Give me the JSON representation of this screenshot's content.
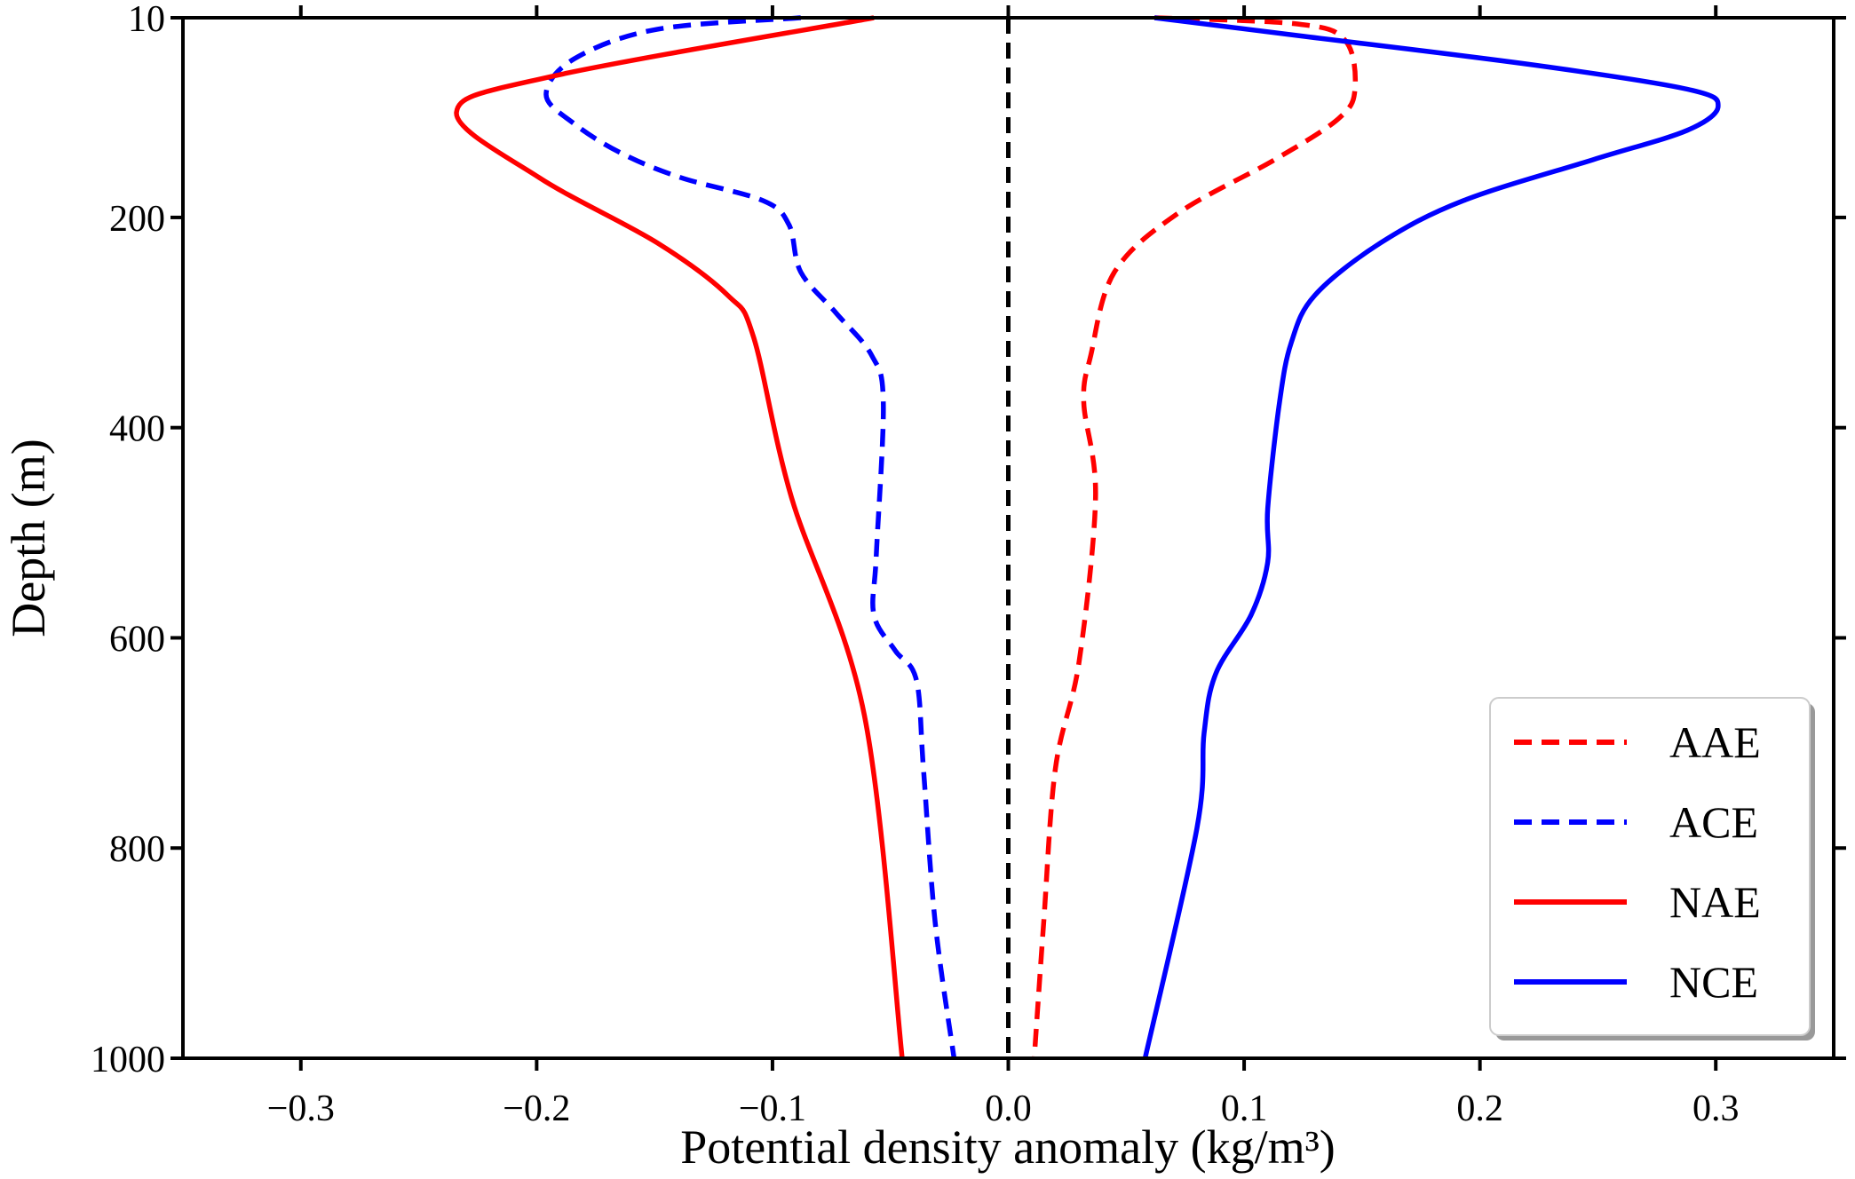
{
  "chart_data": {
    "type": "line",
    "title": "",
    "xlabel": "Potential density anomaly (kg/m³)",
    "ylabel": "Depth (m)",
    "xlim": [
      -0.35,
      0.35
    ],
    "ylim": [
      10,
      1000
    ],
    "y_inverted": true,
    "grid": false,
    "legend_position": "bottom-right",
    "xticks": [
      -0.3,
      -0.2,
      -0.1,
      0.0,
      0.1,
      0.2,
      0.3
    ],
    "xtick_labels": [
      "−0.3",
      "−0.2",
      "−0.1",
      "0.0",
      "0.1",
      "0.2",
      "0.3"
    ],
    "yticks": [
      10,
      200,
      400,
      600,
      800,
      1000
    ],
    "ytick_labels": [
      "10",
      "200",
      "400",
      "600",
      "800",
      "1000"
    ],
    "reference_line": {
      "x": 0.0,
      "color": "#000000",
      "style": "dashed"
    },
    "series": [
      {
        "name": "AAE",
        "color": "#ff0000",
        "style": "dashed",
        "points": [
          [
            0.062,
            10
          ],
          [
            0.123,
            16
          ],
          [
            0.143,
            32
          ],
          [
            0.147,
            78
          ],
          [
            0.14,
            106
          ],
          [
            0.113,
            145
          ],
          [
            0.072,
            196
          ],
          [
            0.045,
            252
          ],
          [
            0.035,
            331
          ],
          [
            0.032,
            376
          ],
          [
            0.037,
            466
          ],
          [
            0.03,
            623
          ],
          [
            0.02,
            724
          ],
          [
            0.015,
            871
          ],
          [
            0.011,
            1000
          ]
        ]
      },
      {
        "name": "ACE",
        "color": "#0000ff",
        "style": "dashed",
        "points": [
          [
            -0.088,
            10
          ],
          [
            -0.149,
            21
          ],
          [
            -0.184,
            49
          ],
          [
            -0.196,
            83
          ],
          [
            -0.184,
            111
          ],
          [
            -0.164,
            139
          ],
          [
            -0.139,
            162
          ],
          [
            -0.104,
            184
          ],
          [
            -0.093,
            207
          ],
          [
            -0.088,
            252
          ],
          [
            -0.073,
            291
          ],
          [
            -0.058,
            331
          ],
          [
            -0.053,
            376
          ],
          [
            -0.056,
            522
          ],
          [
            -0.057,
            578
          ],
          [
            -0.048,
            612
          ],
          [
            -0.039,
            640
          ],
          [
            -0.036,
            724
          ],
          [
            -0.031,
            871
          ],
          [
            -0.023,
            1000
          ]
        ]
      },
      {
        "name": "NAE",
        "color": "#ff0000",
        "style": "solid",
        "points": [
          [
            -0.057,
            10
          ],
          [
            -0.194,
            66
          ],
          [
            -0.234,
            100
          ],
          [
            -0.199,
            162
          ],
          [
            -0.149,
            224
          ],
          [
            -0.119,
            274
          ],
          [
            -0.108,
            314
          ],
          [
            -0.092,
            466
          ],
          [
            -0.061,
            674
          ],
          [
            -0.045,
            1000
          ]
        ]
      },
      {
        "name": "NCE",
        "color": "#0000ff",
        "style": "solid",
        "points": [
          [
            0.062,
            10
          ],
          [
            0.123,
            27
          ],
          [
            0.223,
            55
          ],
          [
            0.288,
            78
          ],
          [
            0.301,
            94
          ],
          [
            0.288,
            117
          ],
          [
            0.248,
            145
          ],
          [
            0.193,
            184
          ],
          [
            0.158,
            224
          ],
          [
            0.13,
            274
          ],
          [
            0.12,
            319
          ],
          [
            0.115,
            376
          ],
          [
            0.11,
            477
          ],
          [
            0.11,
            528
          ],
          [
            0.103,
            578
          ],
          [
            0.088,
            634
          ],
          [
            0.083,
            691
          ],
          [
            0.08,
            781
          ],
          [
            0.058,
            1000
          ]
        ]
      }
    ]
  }
}
